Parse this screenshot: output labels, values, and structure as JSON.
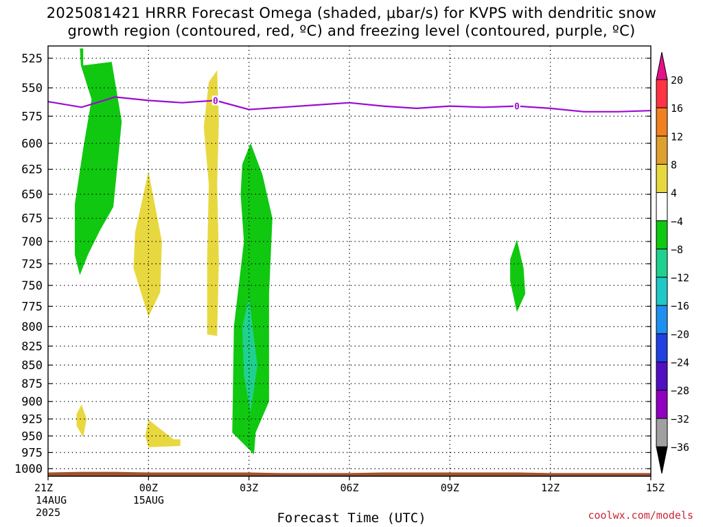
{
  "title": "2025081421 HRRR Forecast Omega (shaded, μbar/s) for KVPS with dendritic snow\ngrowth region (contoured, red, ºC) and freezing level (contoured, purple, ºC)",
  "credit": "coolwx.com/models",
  "chart_data": {
    "type": "contour",
    "title": "2025081421 HRRR Forecast Omega (shaded, μbar/s) for KVPS with dendritic snow growth region (contoured, red, ºC) and freezing level (contoured, purple, ºC)",
    "xlabel": "Forecast Time (UTC)",
    "ylabel": "",
    "x_units": "hours since 21Z 14AUG 2025",
    "xlim": [
      0,
      18
    ],
    "ylim": [
      1012,
      515
    ],
    "y_scale": "log-pressure",
    "grid": true,
    "x_ticks": [
      {
        "x": 0,
        "lines": [
          "21Z",
          "14AUG",
          "2025"
        ]
      },
      {
        "x": 3,
        "lines": [
          "00Z",
          "15AUG"
        ]
      },
      {
        "x": 6,
        "lines": [
          "03Z"
        ]
      },
      {
        "x": 9,
        "lines": [
          "06Z"
        ]
      },
      {
        "x": 12,
        "lines": [
          "09Z"
        ]
      },
      {
        "x": 15,
        "lines": [
          "12Z"
        ]
      },
      {
        "x": 18,
        "lines": [
          "15Z"
        ]
      }
    ],
    "y_ticks": [
      525,
      550,
      575,
      600,
      625,
      650,
      675,
      700,
      725,
      750,
      775,
      800,
      825,
      850,
      875,
      900,
      925,
      950,
      975,
      1000
    ],
    "colorbar": {
      "labels": [
        "20",
        "16",
        "12",
        "8",
        "4",
        "−4",
        "−8",
        "−12",
        "−16",
        "−20",
        "−24",
        "−28",
        "−32",
        "−36"
      ],
      "colors": [
        "#ff3344",
        "#f08020",
        "#e0a030",
        "#e8d840",
        "#ffffff",
        "#10c810",
        "#20d090",
        "#20c8c8",
        "#2090f0",
        "#2040e0",
        "#5010c0",
        "#9000c0",
        "#a0a0a0"
      ],
      "top_color": "#e8108a",
      "bottom_color": "#000000"
    },
    "shaded_regions": [
      {
        "omega": "-4 to -8",
        "color": "#10c810",
        "points": [
          [
            0.95,
            517
          ],
          [
            1.05,
            517
          ],
          [
            1.05,
            531
          ],
          [
            1.9,
            528
          ],
          [
            2.2,
            580
          ],
          [
            1.95,
            663
          ],
          [
            1.55,
            688
          ],
          [
            1.2,
            714
          ],
          [
            0.95,
            738
          ],
          [
            0.8,
            715
          ],
          [
            0.8,
            660
          ],
          [
            1.05,
            605
          ],
          [
            1.3,
            560
          ],
          [
            0.98,
            531
          ]
        ]
      },
      {
        "omega": "4 to 8",
        "color": "#e8d840",
        "points": [
          [
            3.0,
            627
          ],
          [
            3.4,
            700
          ],
          [
            3.35,
            758
          ],
          [
            3.0,
            788
          ],
          [
            2.55,
            730
          ],
          [
            2.6,
            690
          ],
          [
            2.85,
            650
          ]
        ]
      },
      {
        "omega": "4 to 8",
        "color": "#e8d840",
        "points": [
          [
            5.05,
            535
          ],
          [
            5.1,
            580
          ],
          [
            5.05,
            640
          ],
          [
            5.1,
            720
          ],
          [
            5.05,
            812
          ],
          [
            4.75,
            810
          ],
          [
            4.75,
            720
          ],
          [
            4.8,
            640
          ],
          [
            4.65,
            585
          ],
          [
            4.8,
            545
          ]
        ]
      },
      {
        "omega": "-4 to -8",
        "color": "#10c810",
        "points": [
          [
            6.05,
            600
          ],
          [
            6.4,
            630
          ],
          [
            6.7,
            675
          ],
          [
            6.6,
            760
          ],
          [
            6.6,
            900
          ],
          [
            6.2,
            945
          ],
          [
            6.15,
            978
          ],
          [
            6.0,
            970
          ],
          [
            5.5,
            945
          ],
          [
            5.55,
            800
          ],
          [
            5.85,
            700
          ],
          [
            5.75,
            650
          ],
          [
            5.8,
            620
          ]
        ]
      },
      {
        "omega": "-8 to -12",
        "color": "#20d090",
        "points": [
          [
            6.0,
            765
          ],
          [
            6.25,
            850
          ],
          [
            6.05,
            915
          ],
          [
            5.85,
            865
          ],
          [
            5.8,
            800
          ]
        ]
      },
      {
        "omega": "4 to 8",
        "color": "#e8d840",
        "points": [
          [
            1.0,
            904
          ],
          [
            1.15,
            925
          ],
          [
            1.05,
            952
          ],
          [
            0.85,
            935
          ],
          [
            0.85,
            918
          ]
        ]
      },
      {
        "omega": "4 to 8",
        "color": "#e8d840",
        "points": [
          [
            3.0,
            926
          ],
          [
            3.75,
            955
          ],
          [
            3.95,
            955
          ],
          [
            3.95,
            965
          ],
          [
            3.0,
            967
          ],
          [
            2.9,
            950
          ]
        ]
      },
      {
        "omega": "-4 to -8",
        "color": "#10c810",
        "points": [
          [
            14.0,
            698
          ],
          [
            14.2,
            730
          ],
          [
            14.25,
            760
          ],
          [
            14.0,
            782
          ],
          [
            13.8,
            745
          ],
          [
            13.8,
            720
          ]
        ]
      }
    ],
    "freezing_level": {
      "label": "0",
      "color": "#9a0ad6",
      "x": [
        0,
        1,
        2,
        3,
        4,
        5,
        6,
        7,
        8,
        9,
        10,
        11,
        12,
        13,
        14,
        15,
        16,
        17,
        18
      ],
      "y": [
        562,
        567,
        558,
        561,
        563,
        561,
        569,
        567,
        565,
        563,
        566,
        568,
        566,
        567,
        566,
        568,
        571,
        571,
        570
      ]
    },
    "ground_fill": {
      "color": "#a0522d",
      "x": [
        0,
        1,
        2,
        3,
        4,
        5,
        6,
        7,
        8,
        9,
        10,
        11,
        12,
        13,
        14,
        15,
        16,
        17,
        18
      ],
      "y": [
        1006,
        1005,
        1005,
        1006,
        1006,
        1006,
        1006,
        1007,
        1007,
        1007,
        1006,
        1006,
        1006,
        1006,
        1006,
        1007,
        1007,
        1007,
        1007
      ]
    }
  }
}
